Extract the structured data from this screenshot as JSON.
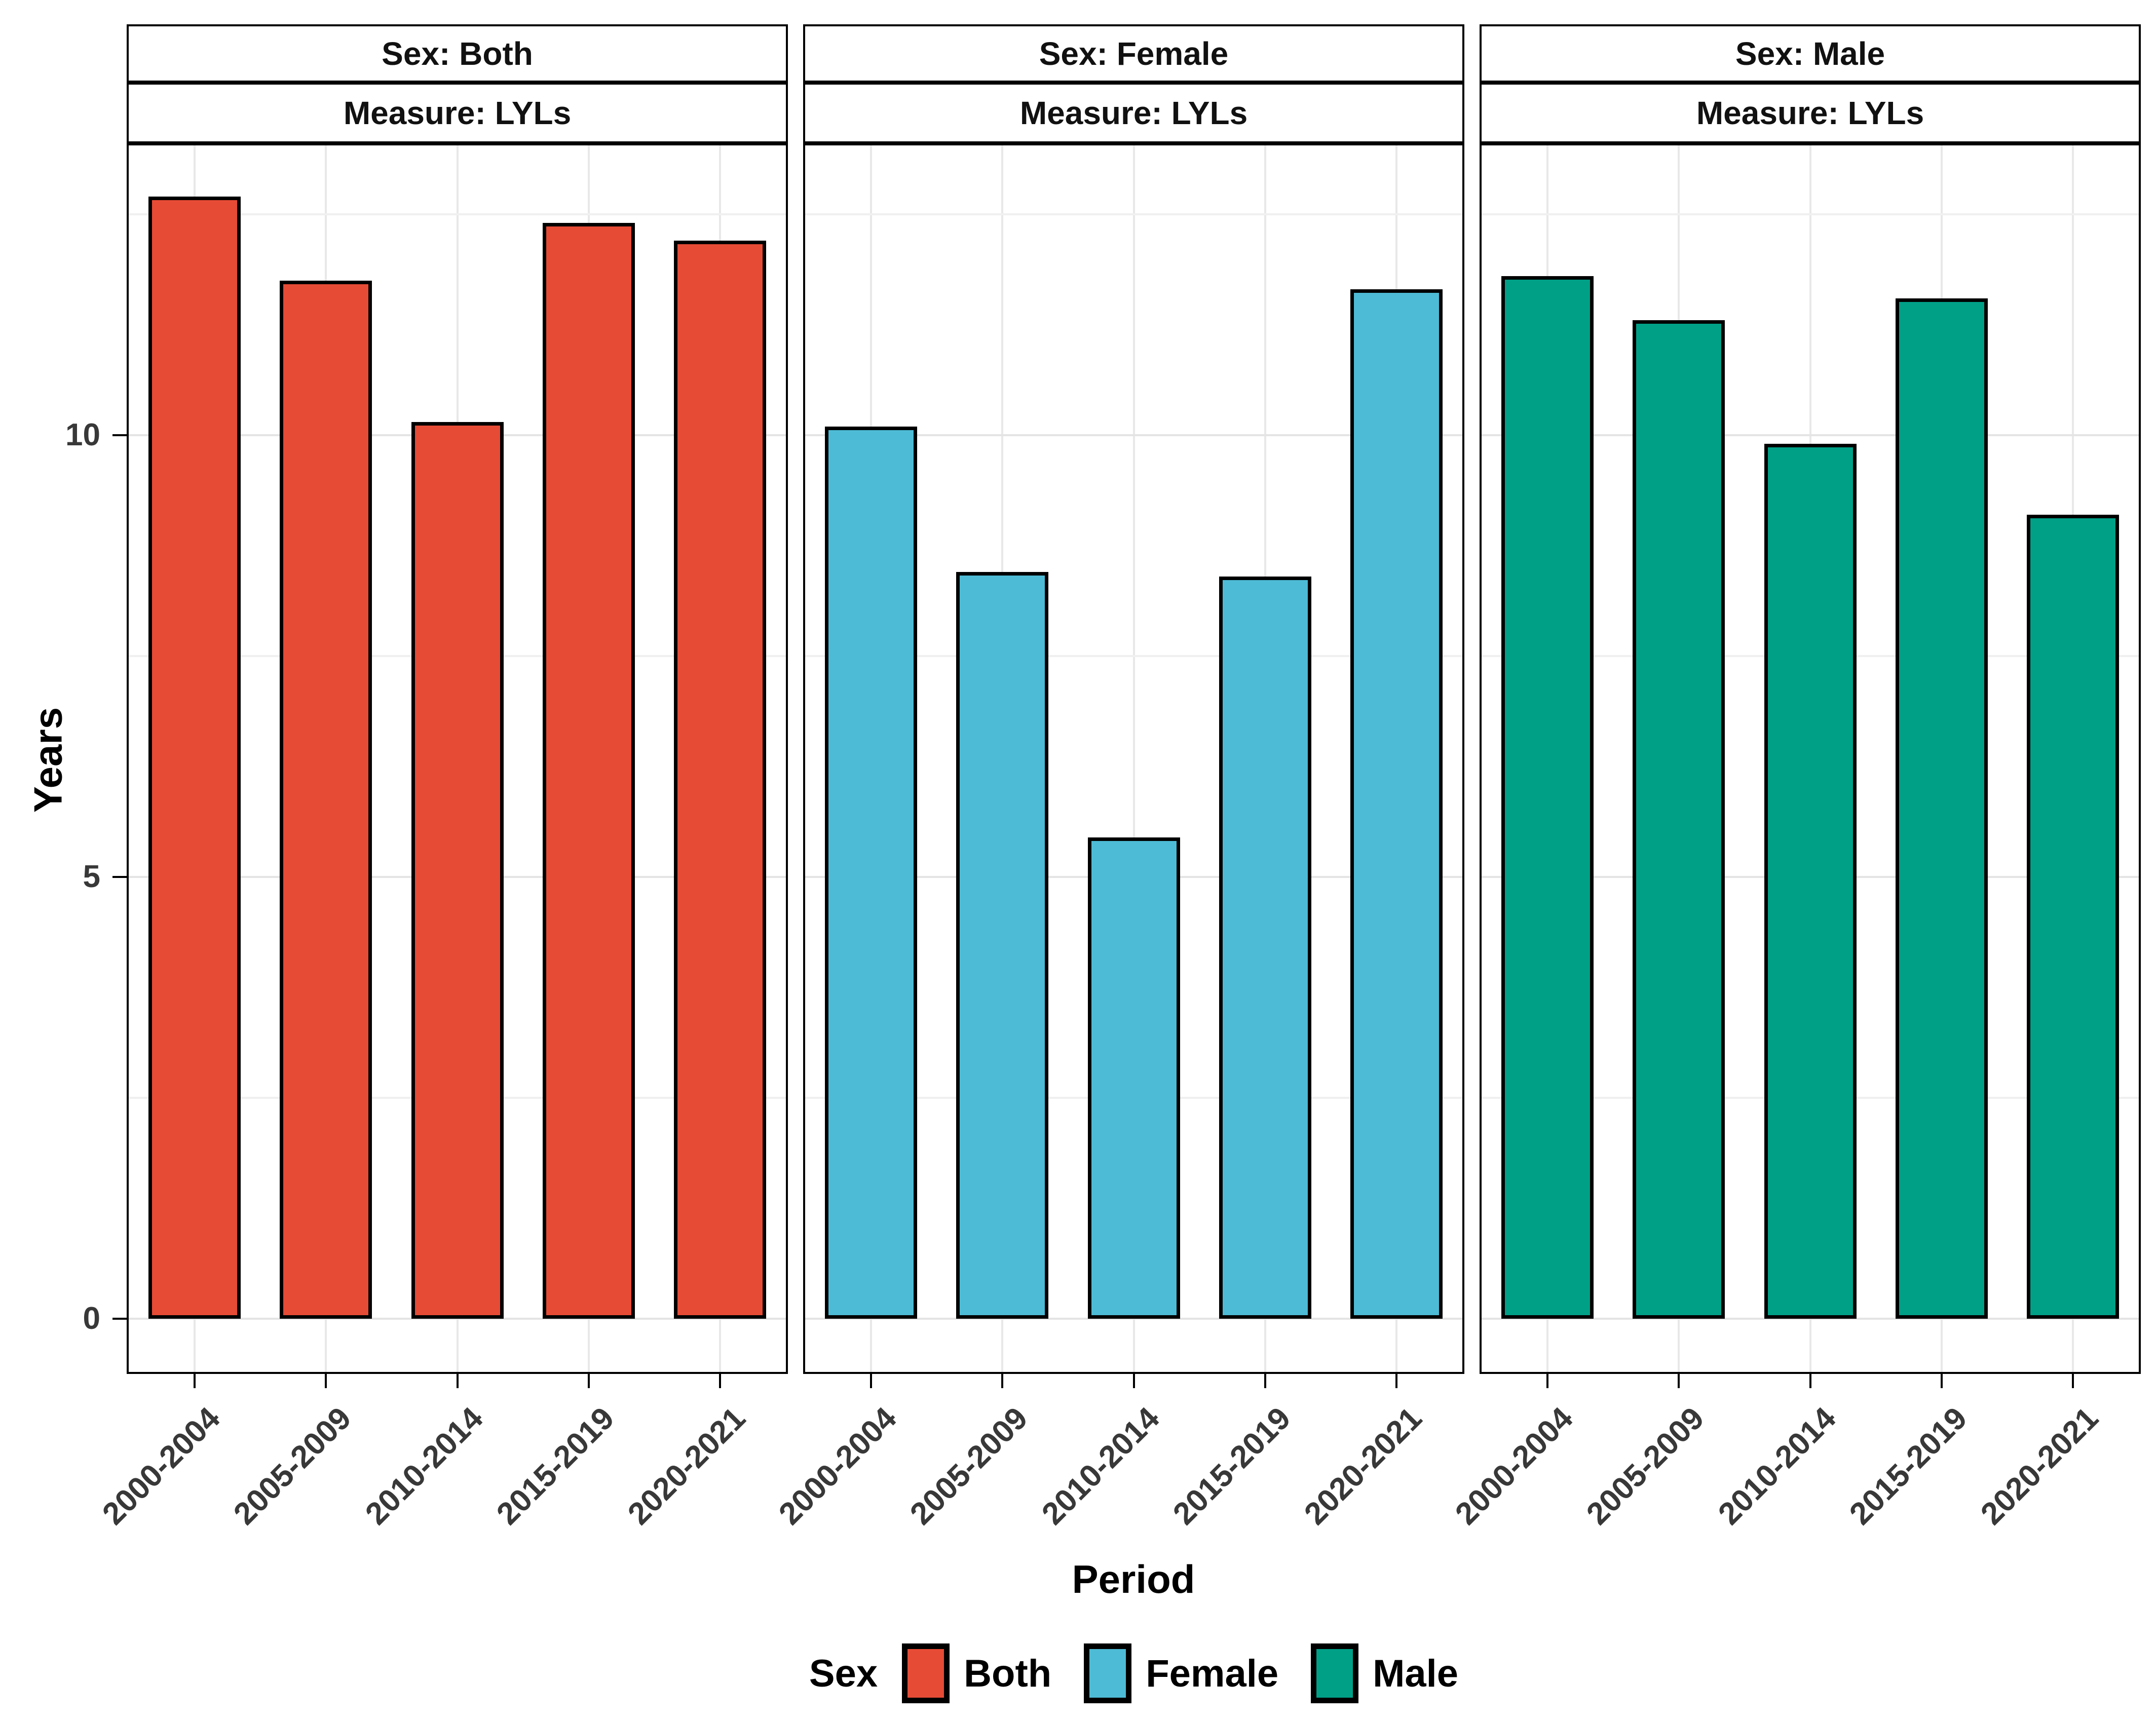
{
  "chart_data": {
    "type": "bar",
    "title": "",
    "xlabel": "Period",
    "ylabel": "Years",
    "categories": [
      "2000-2004",
      "2005-2009",
      "2010-2014",
      "2015-2019",
      "2020-2021"
    ],
    "facets": [
      {
        "strip_top": "Sex: Both",
        "strip_bottom": "Measure: LYLs",
        "series": "Both",
        "color": "#E64B35",
        "values": [
          12.7,
          11.75,
          10.15,
          12.4,
          12.2
        ]
      },
      {
        "strip_top": "Sex: Female",
        "strip_bottom": "Measure: LYLs",
        "series": "Female",
        "color": "#4DBBD5",
        "values": [
          10.1,
          8.45,
          5.45,
          8.4,
          11.65
        ]
      },
      {
        "strip_top": "Sex: Male",
        "strip_bottom": "Measure: LYLs",
        "series": "Male",
        "color": "#00A087",
        "values": [
          11.8,
          11.3,
          9.9,
          11.55,
          9.1
        ]
      }
    ],
    "y_ticks": [
      0,
      5,
      10
    ],
    "y_minor_gridlines": [
      2.5,
      7.5,
      12.5
    ],
    "ylim": [
      0,
      13.3
    ],
    "grid": true,
    "bar_outline_color": "#000000",
    "legend": {
      "title": "Sex",
      "position": "bottom",
      "entries": [
        {
          "label": "Both",
          "color": "#E64B35"
        },
        {
          "label": "Female",
          "color": "#4DBBD5"
        },
        {
          "label": "Male",
          "color": "#00A087"
        }
      ]
    }
  }
}
